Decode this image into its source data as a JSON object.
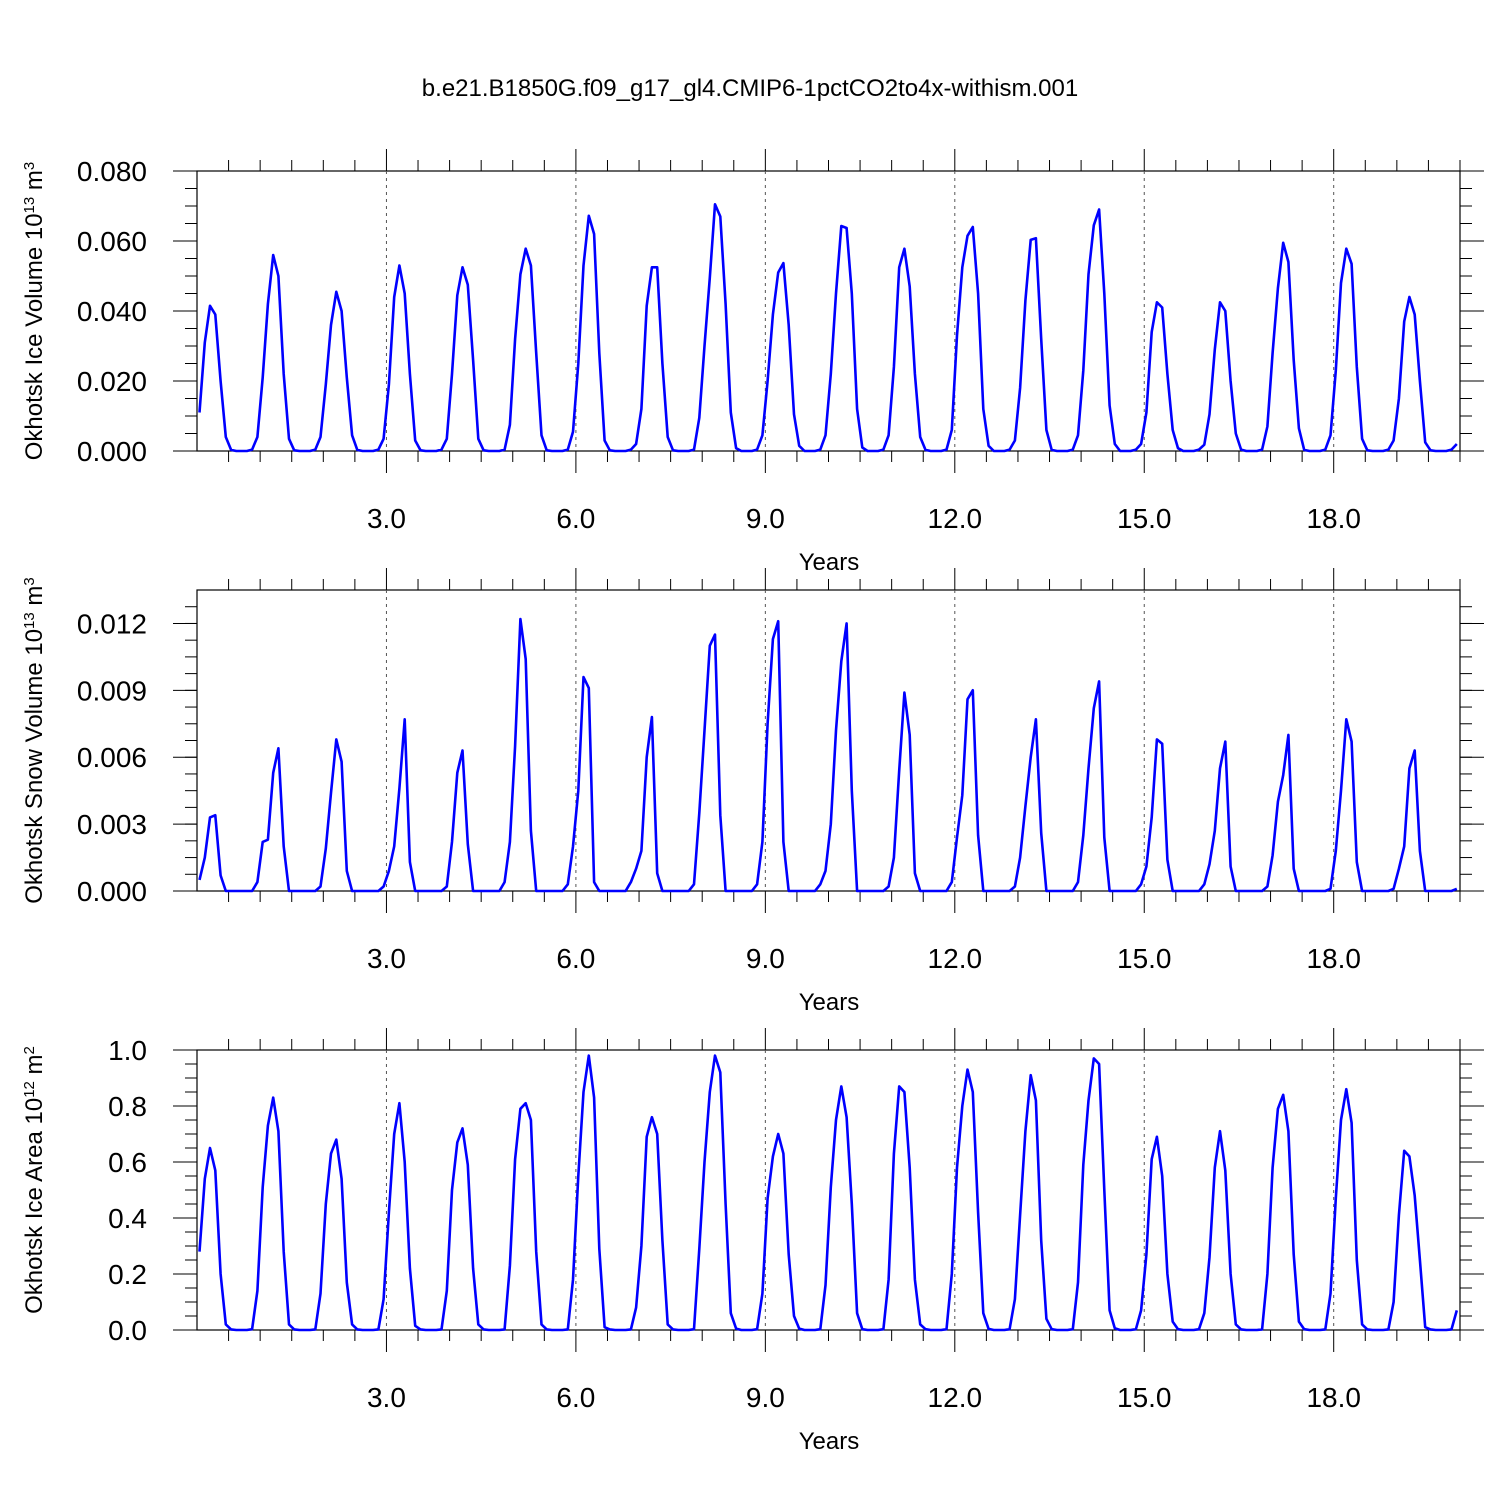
{
  "title": "b.e21.B1850G.f09_g17_gl4.CMIP6-1pctCO2to4x-withism.001",
  "line_color": "#0000ff",
  "chart_data": [
    {
      "type": "line",
      "ylabel": "Okhotsk Ice Volume 10",
      "ylabel_sup": "13",
      "ylabel_unit": "m",
      "ylabel_unit_sup": "3",
      "xlabel": "Years",
      "xlim": [
        0,
        20
      ],
      "ylim": [
        0,
        0.08
      ],
      "x_ticks": [
        "3.0",
        "6.0",
        "9.0",
        "12.0",
        "15.0",
        "18.0"
      ],
      "y_ticks": [
        "0.000",
        "0.020",
        "0.040",
        "0.060",
        "0.080"
      ],
      "grid": "dashed-vertical-every-3-years",
      "x_start": 0.04,
      "x_step": 0.0833,
      "values": [
        0.011,
        0.031,
        0.0415,
        0.039,
        0.02,
        0.004,
        0.0003,
        0,
        0,
        0,
        0.0004,
        0.004,
        0.021,
        0.042,
        0.056,
        0.05,
        0.022,
        0.0035,
        0.0002,
        0,
        0,
        0,
        0.0004,
        0.004,
        0.019,
        0.036,
        0.0455,
        0.04,
        0.021,
        0.0045,
        0.0003,
        0,
        0,
        0,
        0.0004,
        0.0035,
        0.019,
        0.044,
        0.053,
        0.045,
        0.022,
        0.003,
        0.0002,
        0,
        0,
        0,
        0.0004,
        0.0035,
        0.022,
        0.0445,
        0.0525,
        0.0475,
        0.026,
        0.0035,
        0.0002,
        0,
        0,
        0,
        0.0004,
        0.0075,
        0.032,
        0.0505,
        0.0578,
        0.053,
        0.028,
        0.0045,
        0.0002,
        0,
        0,
        0,
        0.0004,
        0.0055,
        0.025,
        0.053,
        0.0672,
        0.062,
        0.028,
        0.003,
        0.0002,
        0,
        0,
        0,
        0.0004,
        0.002,
        0.012,
        0.0415,
        0.0525,
        0.0525,
        0.025,
        0.004,
        0.0002,
        0,
        0,
        0,
        0.0004,
        0.0095,
        0.03,
        0.0495,
        0.0705,
        0.067,
        0.042,
        0.011,
        0.0008,
        0,
        0,
        0,
        0.0004,
        0.0045,
        0.02,
        0.039,
        0.051,
        0.0537,
        0.036,
        0.0105,
        0.0015,
        0,
        0,
        0,
        0.0004,
        0.0045,
        0.022,
        0.045,
        0.0643,
        0.0637,
        0.045,
        0.012,
        0.001,
        0,
        0,
        0,
        0.0004,
        0.0045,
        0.024,
        0.0525,
        0.0578,
        0.047,
        0.022,
        0.004,
        0.0003,
        0,
        0,
        0,
        0.0004,
        0.006,
        0.033,
        0.0525,
        0.0615,
        0.064,
        0.045,
        0.012,
        0.0015,
        0,
        0,
        0,
        0.0004,
        0.003,
        0.018,
        0.043,
        0.0603,
        0.0608,
        0.032,
        0.006,
        0.0003,
        0,
        0,
        0,
        0.0004,
        0.0045,
        0.023,
        0.0505,
        0.0645,
        0.069,
        0.045,
        0.013,
        0.002,
        0,
        0,
        0,
        0.0004,
        0.002,
        0.011,
        0.034,
        0.0425,
        0.041,
        0.022,
        0.006,
        0.0008,
        0,
        0,
        0,
        0.0004,
        0.0018,
        0.0105,
        0.029,
        0.0425,
        0.04,
        0.02,
        0.005,
        0.0004,
        0,
        0,
        0,
        0.0004,
        0.007,
        0.028,
        0.0465,
        0.0595,
        0.054,
        0.026,
        0.0065,
        0.0003,
        0,
        0,
        0,
        0.0004,
        0.0045,
        0.023,
        0.048,
        0.0578,
        0.0535,
        0.024,
        0.0035,
        0.0002,
        0,
        0,
        0,
        0.0004,
        0.003,
        0.015,
        0.037,
        0.044,
        0.039,
        0.02,
        0.0025,
        0.0002,
        0,
        0,
        0,
        0.0004,
        0.002
      ]
    },
    {
      "type": "line",
      "ylabel": "Okhotsk Snow Volume 10",
      "ylabel_sup": "13",
      "ylabel_unit": "m",
      "ylabel_unit_sup": "3",
      "xlabel": "Years",
      "xlim": [
        0,
        20
      ],
      "ylim": [
        0,
        0.0135
      ],
      "x_ticks": [
        "3.0",
        "6.0",
        "9.0",
        "12.0",
        "15.0",
        "18.0"
      ],
      "y_ticks": [
        "0.000",
        "0.003",
        "0.006",
        "0.009",
        "0.012"
      ],
      "grid": "dashed-vertical-every-3-years",
      "x_start": 0.04,
      "x_step": 0.0833,
      "values": [
        0.0005,
        0.0015,
        0.0033,
        0.0034,
        0.0007,
        0,
        0,
        0,
        0,
        0,
        0,
        0.0004,
        0.0022,
        0.0023,
        0.0053,
        0.0064,
        0.002,
        0,
        0,
        0,
        0,
        0,
        0,
        0.0002,
        0.0019,
        0.0044,
        0.0068,
        0.0058,
        0.0009,
        0,
        0,
        0,
        0,
        0,
        0,
        0.0002,
        0.0009,
        0.002,
        0.0046,
        0.0077,
        0.0013,
        0,
        0,
        0,
        0,
        0,
        0,
        0.0002,
        0.0022,
        0.0053,
        0.0063,
        0.0021,
        0,
        0,
        0,
        0,
        0,
        0,
        0.0004,
        0.0022,
        0.0065,
        0.0122,
        0.0104,
        0.0027,
        0,
        0,
        0,
        0,
        0,
        0,
        0.0003,
        0.002,
        0.0045,
        0.0096,
        0.0091,
        0.0004,
        0,
        0,
        0,
        0,
        0,
        0,
        0.0004,
        0.001,
        0.0018,
        0.006,
        0.0078,
        0.0008,
        0,
        0,
        0,
        0,
        0,
        0,
        0.0003,
        0.0035,
        0.0072,
        0.011,
        0.0115,
        0.0034,
        0,
        0,
        0,
        0,
        0,
        0,
        0.0003,
        0.0022,
        0.0075,
        0.0113,
        0.0121,
        0.0022,
        0,
        0,
        0,
        0,
        0,
        0,
        0.0003,
        0.0009,
        0.003,
        0.0072,
        0.0103,
        0.012,
        0.0045,
        0,
        0,
        0,
        0,
        0,
        0,
        0.0002,
        0.0015,
        0.0054,
        0.0089,
        0.007,
        0.0008,
        0,
        0,
        0,
        0,
        0,
        0,
        0.0004,
        0.0024,
        0.0043,
        0.0086,
        0.009,
        0.0025,
        0,
        0,
        0,
        0,
        0,
        0,
        0.0002,
        0.0015,
        0.0038,
        0.006,
        0.0077,
        0.0026,
        0,
        0,
        0,
        0,
        0,
        0,
        0.0004,
        0.0025,
        0.0055,
        0.0082,
        0.0094,
        0.0024,
        0,
        0,
        0,
        0,
        0,
        0,
        0.0003,
        0.0011,
        0.0033,
        0.0068,
        0.0066,
        0.0014,
        0,
        0,
        0,
        0,
        0,
        0,
        0.0003,
        0.0012,
        0.0027,
        0.0055,
        0.0067,
        0.0011,
        0,
        0,
        0,
        0,
        0,
        0,
        0.0002,
        0.0016,
        0.004,
        0.0052,
        0.007,
        0.001,
        0,
        0,
        0,
        0,
        0,
        0,
        0.0001,
        0.0018,
        0.0045,
        0.0077,
        0.0067,
        0.0013,
        0,
        0,
        0,
        0,
        0,
        0,
        0.0001,
        0.001,
        0.002,
        0.0055,
        0.0063,
        0.0018,
        0,
        0,
        0,
        0,
        0,
        0,
        0.0001
      ]
    },
    {
      "type": "line",
      "ylabel": "Okhotsk Ice Area 10",
      "ylabel_sup": "12",
      "ylabel_unit": "m",
      "ylabel_unit_sup": "2",
      "xlabel": "Years",
      "xlim": [
        0,
        20
      ],
      "ylim": [
        0,
        1.0
      ],
      "x_ticks": [
        "3.0",
        "6.0",
        "9.0",
        "12.0",
        "15.0",
        "18.0"
      ],
      "y_ticks": [
        "0.0",
        "0.2",
        "0.4",
        "0.6",
        "0.8",
        "1.0"
      ],
      "grid": "dashed-vertical-every-3-years",
      "x_start": 0.04,
      "x_step": 0.0833,
      "values": [
        0.28,
        0.54,
        0.65,
        0.57,
        0.2,
        0.02,
        0.002,
        0,
        0,
        0,
        0.003,
        0.14,
        0.51,
        0.73,
        0.83,
        0.71,
        0.28,
        0.02,
        0.002,
        0,
        0,
        0,
        0.002,
        0.13,
        0.45,
        0.63,
        0.68,
        0.54,
        0.17,
        0.02,
        0.002,
        0,
        0,
        0,
        0.002,
        0.11,
        0.42,
        0.7,
        0.81,
        0.6,
        0.22,
        0.015,
        0.002,
        0,
        0,
        0,
        0.002,
        0.14,
        0.5,
        0.67,
        0.72,
        0.59,
        0.22,
        0.02,
        0.002,
        0,
        0,
        0,
        0.002,
        0.23,
        0.61,
        0.79,
        0.81,
        0.75,
        0.28,
        0.02,
        0.002,
        0,
        0,
        0,
        0.002,
        0.18,
        0.55,
        0.85,
        0.98,
        0.83,
        0.29,
        0.01,
        0.002,
        0,
        0,
        0,
        0.002,
        0.08,
        0.3,
        0.69,
        0.76,
        0.7,
        0.32,
        0.02,
        0.002,
        0,
        0,
        0,
        0.003,
        0.29,
        0.6,
        0.85,
        0.98,
        0.92,
        0.45,
        0.06,
        0.005,
        0,
        0,
        0,
        0.003,
        0.13,
        0.47,
        0.62,
        0.7,
        0.63,
        0.27,
        0.05,
        0.005,
        0,
        0,
        0,
        0.003,
        0.16,
        0.51,
        0.75,
        0.87,
        0.76,
        0.45,
        0.06,
        0.003,
        0,
        0,
        0,
        0.003,
        0.18,
        0.63,
        0.87,
        0.85,
        0.58,
        0.18,
        0.02,
        0.003,
        0,
        0,
        0,
        0.003,
        0.2,
        0.58,
        0.8,
        0.93,
        0.85,
        0.42,
        0.06,
        0.004,
        0,
        0,
        0,
        0.003,
        0.11,
        0.41,
        0.71,
        0.91,
        0.82,
        0.32,
        0.04,
        0.003,
        0,
        0,
        0,
        0.003,
        0.17,
        0.59,
        0.82,
        0.97,
        0.95,
        0.5,
        0.07,
        0.006,
        0,
        0,
        0,
        0.003,
        0.07,
        0.27,
        0.61,
        0.69,
        0.55,
        0.2,
        0.03,
        0.003,
        0,
        0,
        0,
        0.003,
        0.06,
        0.26,
        0.58,
        0.71,
        0.57,
        0.2,
        0.02,
        0.002,
        0,
        0,
        0,
        0.002,
        0.2,
        0.58,
        0.79,
        0.84,
        0.71,
        0.27,
        0.03,
        0.003,
        0,
        0,
        0,
        0.002,
        0.13,
        0.47,
        0.75,
        0.86,
        0.74,
        0.25,
        0.02,
        0.002,
        0,
        0,
        0,
        0.002,
        0.1,
        0.41,
        0.64,
        0.62,
        0.48,
        0.25,
        0.01,
        0.002,
        0,
        0,
        0,
        0.002,
        0.07
      ]
    }
  ]
}
